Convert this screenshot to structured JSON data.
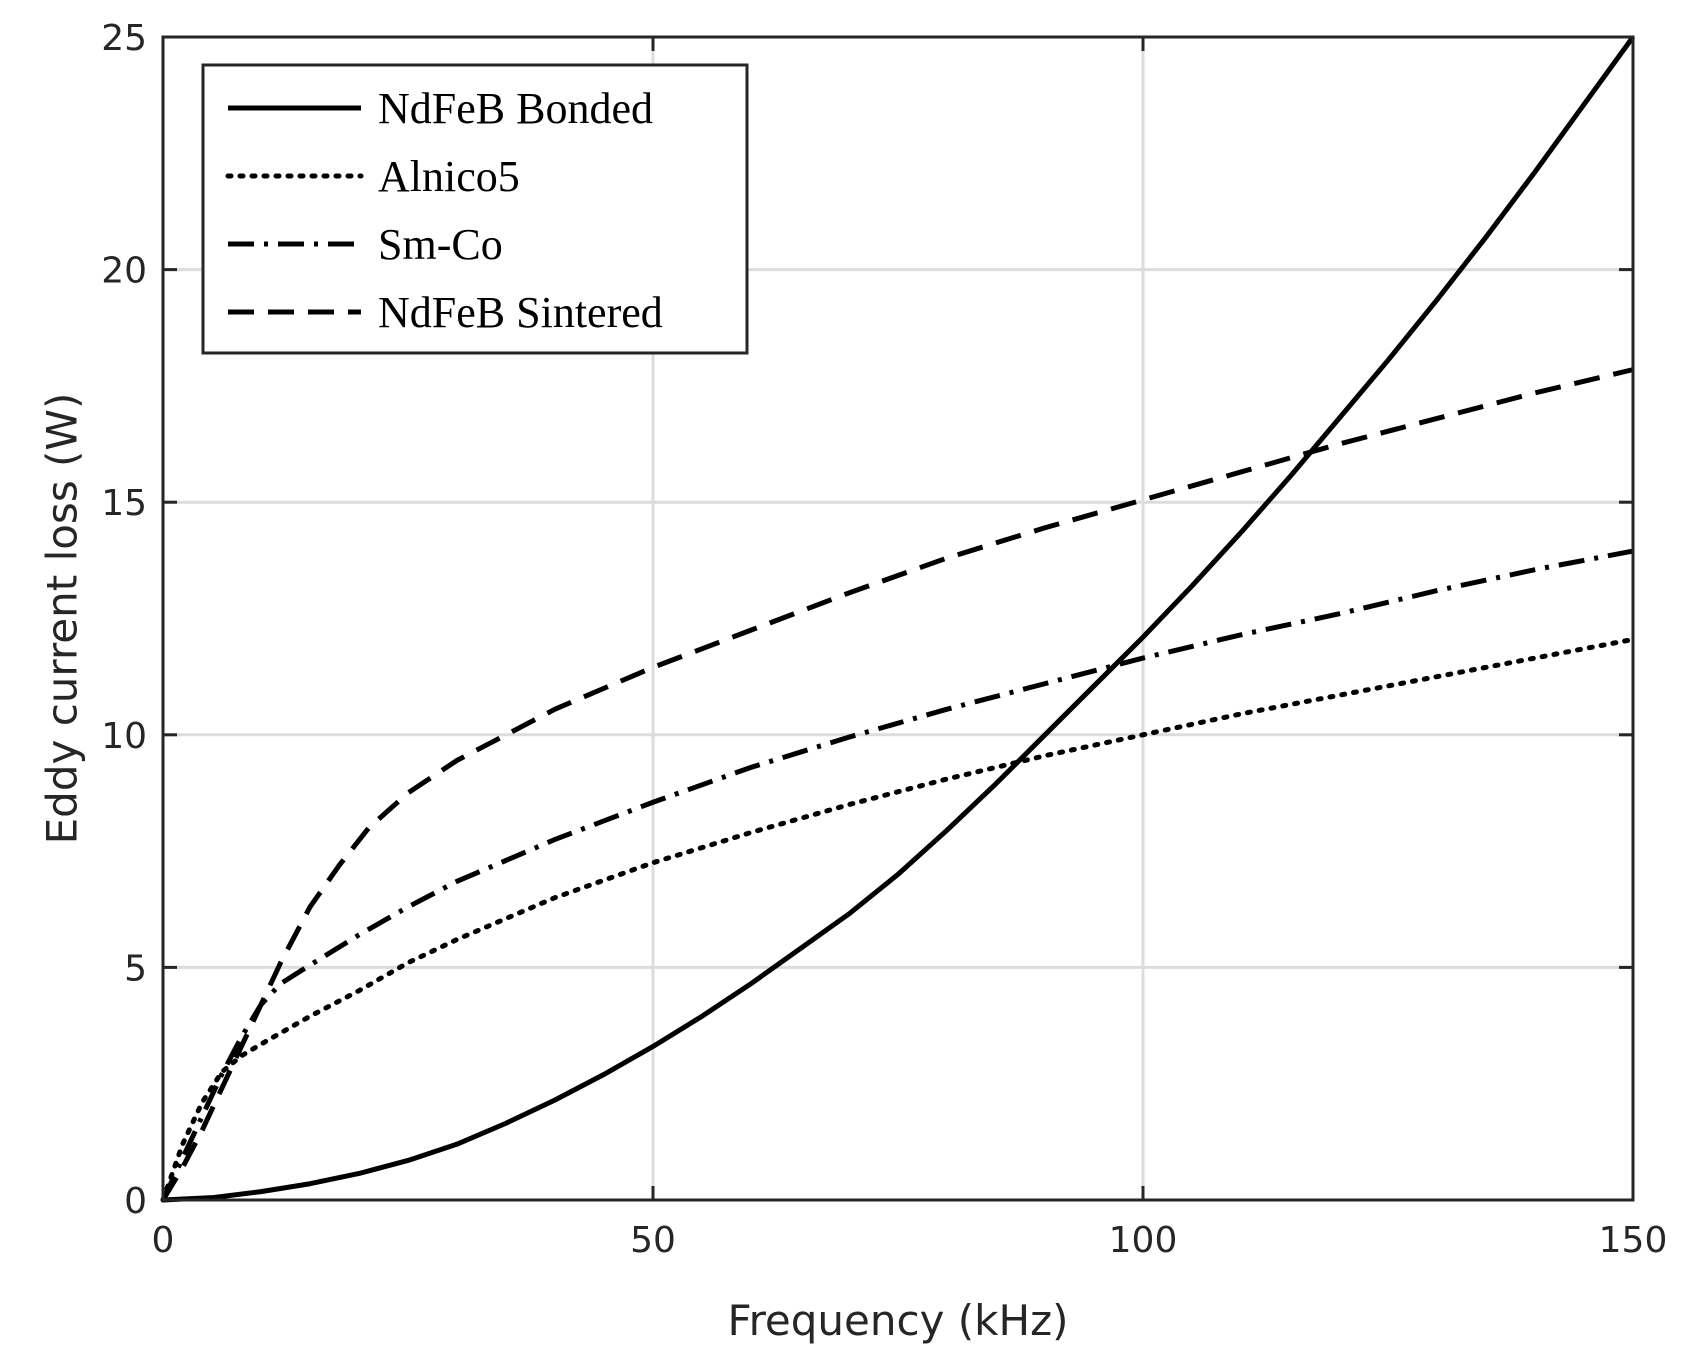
{
  "chart_data": {
    "type": "line",
    "title": "",
    "xlabel": "Frequency (kHz)",
    "ylabel": "Eddy current loss (W)",
    "xlim": [
      0,
      150
    ],
    "ylim": [
      0,
      25
    ],
    "xticks": [
      0,
      50,
      100,
      150
    ],
    "yticks": [
      0,
      5,
      10,
      15,
      20,
      25
    ],
    "grid": true,
    "legend_position": "top-left",
    "series": [
      {
        "name": "NdFeB Bonded",
        "style": "solid",
        "x": [
          0,
          5,
          10,
          15,
          20,
          25,
          30,
          35,
          40,
          45,
          50,
          55,
          60,
          65,
          70,
          75,
          80,
          85,
          90,
          95,
          100,
          105,
          110,
          115,
          120,
          125,
          130,
          135,
          140,
          145,
          150
        ],
        "values": [
          0,
          0.05,
          0.18,
          0.35,
          0.57,
          0.85,
          1.2,
          1.65,
          2.15,
          2.7,
          3.3,
          3.95,
          4.65,
          5.4,
          6.15,
          7.0,
          7.95,
          8.95,
          10.0,
          11.05,
          12.1,
          13.2,
          14.35,
          15.55,
          16.8,
          18.05,
          19.35,
          20.7,
          22.1,
          23.55,
          25.0
        ]
      },
      {
        "name": "Alnico5",
        "style": "dotted",
        "x": [
          0,
          2,
          4,
          6,
          8,
          10,
          15,
          20,
          25,
          30,
          40,
          50,
          60,
          70,
          80,
          90,
          100,
          110,
          120,
          130,
          140,
          150
        ],
        "values": [
          0,
          1.2,
          2.1,
          2.75,
          3.1,
          3.35,
          3.95,
          4.5,
          5.1,
          5.6,
          6.5,
          7.25,
          7.9,
          8.5,
          9.05,
          9.55,
          10.0,
          10.45,
          10.85,
          11.25,
          11.65,
          12.05
        ]
      },
      {
        "name": "Sm-Co",
        "style": "dashdot",
        "x": [
          0,
          2,
          4,
          6,
          8,
          10,
          12,
          15,
          20,
          25,
          30,
          40,
          50,
          60,
          70,
          80,
          90,
          100,
          110,
          120,
          130,
          140,
          150
        ],
        "values": [
          0,
          0.9,
          1.8,
          2.7,
          3.5,
          4.2,
          4.65,
          5.05,
          5.7,
          6.3,
          6.85,
          7.75,
          8.55,
          9.3,
          9.95,
          10.55,
          11.1,
          11.65,
          12.15,
          12.6,
          13.1,
          13.55,
          13.95
        ]
      },
      {
        "name": "NdFeB Sintered",
        "style": "dashed",
        "x": [
          0,
          2,
          4,
          6,
          8,
          10,
          12,
          15,
          18,
          21,
          25,
          30,
          35,
          40,
          50,
          60,
          70,
          80,
          90,
          100,
          110,
          120,
          130,
          140,
          150
        ],
        "values": [
          0,
          0.7,
          1.5,
          2.4,
          3.3,
          4.2,
          5.1,
          6.3,
          7.2,
          8.0,
          8.75,
          9.45,
          10.0,
          10.55,
          11.45,
          12.25,
          13.05,
          13.8,
          14.45,
          15.05,
          15.65,
          16.25,
          16.8,
          17.35,
          17.85
        ]
      }
    ]
  }
}
